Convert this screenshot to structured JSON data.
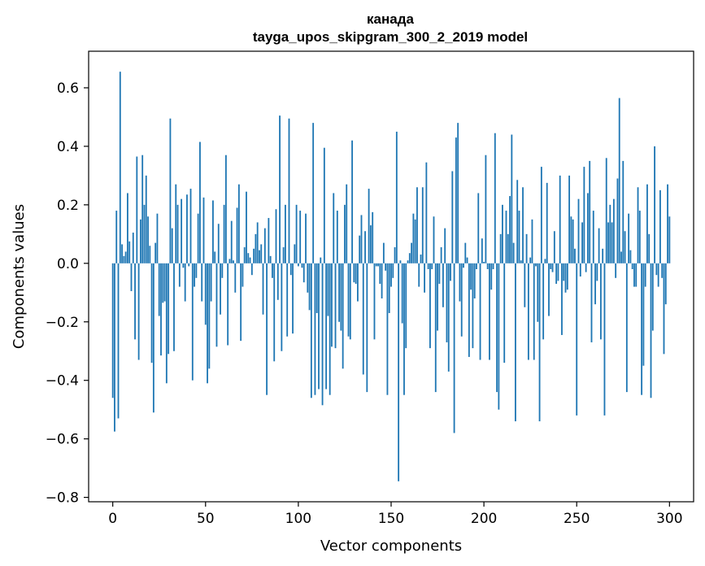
{
  "chart_data": {
    "type": "bar",
    "title": "канада",
    "subtitle": "tayga_upos_skipgram_300_2_2019 model",
    "xlabel": "Vector components",
    "ylabel": "Components values",
    "xlim": [
      -13,
      313
    ],
    "ylim": [
      -0.815,
      0.725
    ],
    "xticks": [
      0,
      50,
      100,
      150,
      200,
      250,
      300
    ],
    "xtick_labels": [
      "0",
      "50",
      "100",
      "150",
      "200",
      "250",
      "300"
    ],
    "yticks": [
      -0.8,
      -0.6,
      -0.4,
      -0.2,
      0.0,
      0.2,
      0.4,
      0.6
    ],
    "ytick_labels": [
      "−0.8",
      "−0.6",
      "−0.4",
      "−0.2",
      "0.0",
      "0.2",
      "0.4",
      "0.6"
    ],
    "bar_color": "#1f77b4",
    "grid": false,
    "values": [
      -0.46,
      -0.575,
      0.18,
      -0.53,
      0.655,
      0.065,
      0.025,
      0.04,
      0.24,
      0.075,
      -0.095,
      0.105,
      -0.26,
      0.365,
      -0.33,
      0.15,
      0.37,
      0.2,
      0.3,
      0.16,
      0.06,
      -0.34,
      -0.51,
      0.07,
      0.17,
      -0.18,
      -0.315,
      -0.135,
      -0.13,
      -0.41,
      -0.31,
      0.495,
      0.12,
      -0.3,
      0.27,
      0.2,
      -0.08,
      0.22,
      -0.015,
      -0.13,
      0.235,
      -0.01,
      0.255,
      -0.4,
      -0.08,
      -0.05,
      0.17,
      0.415,
      -0.13,
      0.225,
      -0.21,
      -0.41,
      -0.36,
      -0.13,
      0.215,
      0.04,
      -0.285,
      0.135,
      -0.175,
      -0.05,
      0.2,
      0.37,
      -0.28,
      0.015,
      0.145,
      0.01,
      -0.1,
      0.19,
      0.27,
      -0.265,
      -0.08,
      0.055,
      0.245,
      0.035,
      0.02,
      -0.04,
      0.05,
      0.1,
      0.14,
      0.045,
      0.065,
      -0.175,
      0.12,
      -0.45,
      0.155,
      0.025,
      -0.05,
      -0.335,
      0.185,
      -0.125,
      0.505,
      -0.3,
      0.055,
      0.2,
      -0.25,
      0.495,
      -0.04,
      -0.24,
      0.065,
      0.2,
      -0.01,
      0.18,
      -0.015,
      -0.065,
      0.17,
      -0.1,
      -0.16,
      -0.46,
      0.48,
      -0.45,
      -0.17,
      -0.43,
      0.02,
      -0.485,
      0.395,
      -0.43,
      -0.18,
      -0.45,
      -0.285,
      0.24,
      -0.29,
      0.18,
      -0.2,
      -0.23,
      -0.36,
      0.2,
      0.27,
      -0.25,
      -0.26,
      0.42,
      -0.065,
      -0.07,
      -0.13,
      0.095,
      0.165,
      -0.38,
      0.11,
      -0.44,
      0.255,
      0.13,
      0.175,
      -0.26,
      -0.01,
      -0.01,
      -0.07,
      -0.12,
      0.07,
      -0.025,
      -0.45,
      -0.17,
      -0.08,
      -0.05,
      0.055,
      0.45,
      -0.745,
      0.01,
      -0.205,
      -0.45,
      -0.29,
      0.01,
      0.035,
      0.07,
      0.17,
      0.15,
      0.26,
      -0.08,
      0.03,
      0.26,
      -0.1,
      0.345,
      -0.02,
      -0.29,
      -0.02,
      0.16,
      -0.44,
      -0.23,
      -0.07,
      0.055,
      -0.15,
      0.12,
      -0.27,
      -0.37,
      -0.06,
      0.315,
      -0.58,
      0.43,
      0.48,
      -0.13,
      -0.25,
      -0.015,
      0.07,
      0.02,
      -0.32,
      -0.09,
      -0.29,
      -0.12,
      -0.02,
      0.24,
      -0.33,
      0.085,
      0.005,
      0.37,
      -0.02,
      -0.33,
      -0.09,
      -0.02,
      0.445,
      -0.44,
      -0.5,
      0.1,
      0.2,
      -0.34,
      0.18,
      0.1,
      0.23,
      0.44,
      0.07,
      -0.54,
      0.285,
      0.18,
      0.01,
      0.26,
      -0.15,
      0.1,
      -0.33,
      0.02,
      0.15,
      -0.33,
      -0.01,
      -0.2,
      -0.54,
      0.33,
      -0.26,
      0.015,
      0.275,
      -0.18,
      -0.02,
      -0.03,
      0.11,
      -0.07,
      -0.06,
      0.3,
      -0.245,
      -0.06,
      -0.1,
      -0.09,
      0.3,
      0.16,
      0.15,
      0.05,
      -0.52,
      0.22,
      -0.045,
      0.14,
      0.33,
      -0.03,
      0.24,
      0.35,
      -0.27,
      0.18,
      -0.14,
      -0.06,
      0.12,
      -0.26,
      0.05,
      -0.52,
      0.36,
      0.14,
      0.2,
      0.14,
      0.22,
      -0.05,
      0.29,
      0.565,
      0.04,
      0.35,
      0.11,
      -0.44,
      0.17,
      0.045,
      -0.02,
      -0.08,
      -0.08,
      0.26,
      0.18,
      -0.45,
      -0.35,
      -0.08,
      0.27,
      0.1,
      -0.46,
      -0.23,
      0.4,
      -0.04,
      -0.08,
      0.25,
      -0.05,
      -0.31,
      -0.14,
      0.27,
      0.16
    ]
  }
}
